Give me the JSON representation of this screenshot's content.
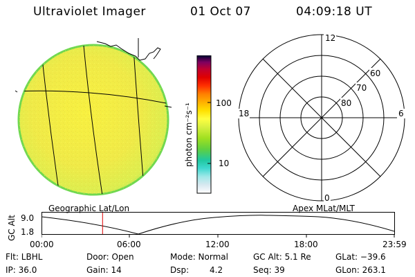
{
  "header": {
    "instrument": "Ultraviolet Imager",
    "date": "01 Oct 07",
    "time": "04:09:18 UT"
  },
  "colorbar": {
    "unit_label": "photon cm⁻²s⁻¹",
    "ticks": [
      "100",
      "10"
    ],
    "colors": [
      "#ffffff",
      "#d8e8f0",
      "#a0e8e8",
      "#40d8d0",
      "#20c8a0",
      "#60d040",
      "#a0e020",
      "#d8f040",
      "#ffff40",
      "#ffe000",
      "#ffb000",
      "#ff8000",
      "#ff3000",
      "#e00000",
      "#c00030",
      "#800060",
      "#400060",
      "#000000"
    ]
  },
  "earth_view": {
    "label": "Geographic Lat/Lon",
    "disk_color": "#f0ec40",
    "rim_color": "#70d850"
  },
  "polar_plot": {
    "label": "Apex MLat/MLT",
    "mlt_labels": [
      "12",
      "6",
      "0",
      "18"
    ],
    "lat_labels": [
      "60",
      "70",
      "80"
    ]
  },
  "altitude_plot": {
    "axis_label": "GC Alt",
    "y_ticks": [
      "9.0",
      "1.8"
    ],
    "x_ticks": [
      "00:00",
      "06:00",
      "12:00",
      "18:00",
      "23:59"
    ],
    "marker_color": "#e00000",
    "marker_time_hours": 4.155
  },
  "status": {
    "row1": {
      "filter": "Flt: LBHL",
      "door": "Door: Open",
      "mode": "Mode: Normal",
      "gc_alt": "GC Alt: 5.1 Re",
      "glat": "GLat: −39.6"
    },
    "row2": {
      "ip": "IP: 36.0",
      "gain": "Gain: 14",
      "dsp_label": "Dsp:",
      "dsp_value": "4.2",
      "seq": "Seq: 39",
      "glon": "GLon: 263.1"
    }
  }
}
